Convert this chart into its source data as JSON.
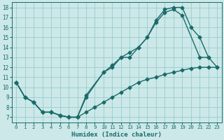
{
  "xlabel": "Humidex (Indice chaleur)",
  "background_color": "#cce8e8",
  "grid_color": "#99cccc",
  "line_color": "#1a6b6b",
  "xlim": [
    -0.5,
    23.5
  ],
  "ylim": [
    6.5,
    18.5
  ],
  "xticks": [
    0,
    1,
    2,
    3,
    4,
    5,
    6,
    7,
    8,
    9,
    10,
    11,
    12,
    13,
    14,
    15,
    16,
    17,
    18,
    19,
    20,
    21,
    22,
    23
  ],
  "yticks": [
    7,
    8,
    9,
    10,
    11,
    12,
    13,
    14,
    15,
    16,
    17,
    18
  ],
  "line1_x": [
    0,
    1,
    2,
    3,
    4,
    5,
    6,
    7,
    8,
    10,
    11,
    12,
    13,
    14,
    15,
    16,
    17,
    18,
    19,
    21,
    22
  ],
  "line1_y": [
    10.5,
    9.0,
    8.5,
    7.5,
    7.5,
    7.2,
    7.0,
    7.0,
    9.0,
    11.5,
    12.0,
    13.0,
    13.0,
    14.0,
    15.0,
    16.5,
    17.5,
    17.8,
    17.2,
    13.0,
    13.0
  ],
  "line2_x": [
    0,
    1,
    2,
    3,
    4,
    5,
    6,
    7,
    8,
    10,
    11,
    12,
    13,
    14,
    15,
    16,
    17,
    18,
    19,
    20,
    21,
    22,
    23
  ],
  "line2_y": [
    10.5,
    9.0,
    8.5,
    7.5,
    7.5,
    7.2,
    7.0,
    7.0,
    9.2,
    11.5,
    12.2,
    13.0,
    13.5,
    14.0,
    15.0,
    16.7,
    17.8,
    18.0,
    18.0,
    16.0,
    15.0,
    13.0,
    12.0
  ],
  "line3_x": [
    0,
    1,
    2,
    3,
    4,
    5,
    6,
    7,
    8,
    9,
    10,
    11,
    12,
    13,
    14,
    15,
    16,
    17,
    18,
    19,
    20,
    21,
    22,
    23
  ],
  "line3_y": [
    10.5,
    9.0,
    8.5,
    7.5,
    7.5,
    7.2,
    7.0,
    7.0,
    7.5,
    8.0,
    8.5,
    9.0,
    9.5,
    10.0,
    10.5,
    10.8,
    11.0,
    11.3,
    11.5,
    11.7,
    11.9,
    12.0,
    12.0,
    12.0
  ],
  "markersize": 2.5,
  "linewidth": 1.0
}
